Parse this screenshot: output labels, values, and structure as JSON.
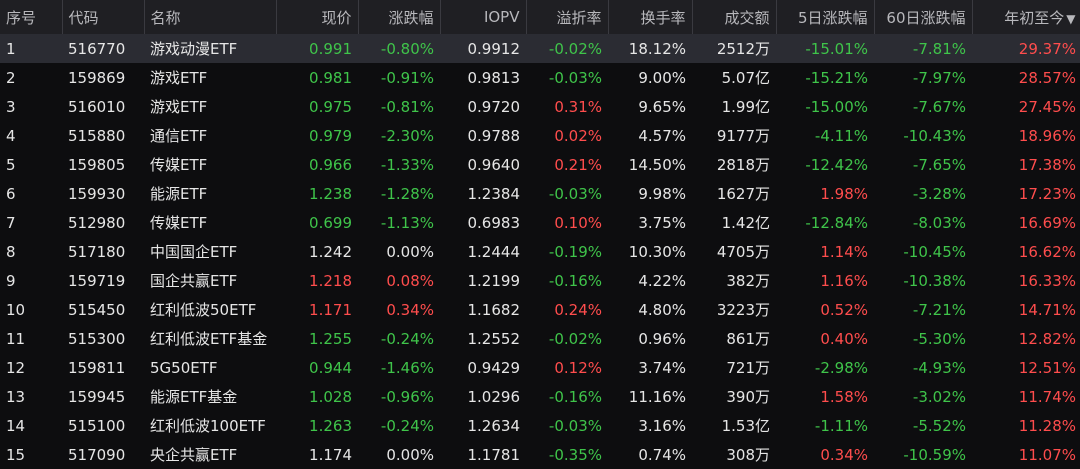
{
  "colors": {
    "up": "#ff4d4d",
    "down": "#3fc44a",
    "flat": "#e6e6e6",
    "header_bg": "#1f1f23",
    "bg": "#0d0d0f",
    "selected_row": "#2b2c33"
  },
  "header": {
    "seq": "序号",
    "code": "代码",
    "name": "名称",
    "price": "现价",
    "change_pct": "涨跌幅",
    "iopv": "IOPV",
    "premium": "溢折率",
    "turnover": "换手率",
    "volume": "成交额",
    "chg5d": "5日涨跌幅",
    "chg60d": "60日涨跌幅",
    "ytd": "年初至今",
    "ytd_sort_icon": "▼"
  },
  "rows": [
    {
      "seq": "1",
      "code": "516770",
      "name": "游戏动漫ETF",
      "price": "0.991",
      "change_pct": "-0.80%",
      "iopv": "0.9912",
      "premium": "-0.02%",
      "turnover": "18.12%",
      "volume": "2512万",
      "chg5d": "-15.01%",
      "chg60d": "-7.81%",
      "ytd": "29.37%"
    },
    {
      "seq": "2",
      "code": "159869",
      "name": "游戏ETF",
      "price": "0.981",
      "change_pct": "-0.91%",
      "iopv": "0.9813",
      "premium": "-0.03%",
      "turnover": "9.00%",
      "volume": "5.07亿",
      "chg5d": "-15.21%",
      "chg60d": "-7.97%",
      "ytd": "28.57%"
    },
    {
      "seq": "3",
      "code": "516010",
      "name": "游戏ETF",
      "price": "0.975",
      "change_pct": "-0.81%",
      "iopv": "0.9720",
      "premium": "0.31%",
      "turnover": "9.65%",
      "volume": "1.99亿",
      "chg5d": "-15.00%",
      "chg60d": "-7.67%",
      "ytd": "27.45%"
    },
    {
      "seq": "4",
      "code": "515880",
      "name": "通信ETF",
      "price": "0.979",
      "change_pct": "-2.30%",
      "iopv": "0.9788",
      "premium": "0.02%",
      "turnover": "4.57%",
      "volume": "9177万",
      "chg5d": "-4.11%",
      "chg60d": "-10.43%",
      "ytd": "18.96%"
    },
    {
      "seq": "5",
      "code": "159805",
      "name": "传媒ETF",
      "price": "0.966",
      "change_pct": "-1.33%",
      "iopv": "0.9640",
      "premium": "0.21%",
      "turnover": "14.50%",
      "volume": "2818万",
      "chg5d": "-12.42%",
      "chg60d": "-7.65%",
      "ytd": "17.38%"
    },
    {
      "seq": "6",
      "code": "159930",
      "name": "能源ETF",
      "price": "1.238",
      "change_pct": "-1.28%",
      "iopv": "1.2384",
      "premium": "-0.03%",
      "turnover": "9.98%",
      "volume": "1627万",
      "chg5d": "1.98%",
      "chg60d": "-3.28%",
      "ytd": "17.23%"
    },
    {
      "seq": "7",
      "code": "512980",
      "name": "传媒ETF",
      "price": "0.699",
      "change_pct": "-1.13%",
      "iopv": "0.6983",
      "premium": "0.10%",
      "turnover": "3.75%",
      "volume": "1.42亿",
      "chg5d": "-12.84%",
      "chg60d": "-8.03%",
      "ytd": "16.69%"
    },
    {
      "seq": "8",
      "code": "517180",
      "name": "中国国企ETF",
      "price": "1.242",
      "change_pct": "0.00%",
      "iopv": "1.2444",
      "premium": "-0.19%",
      "turnover": "10.30%",
      "volume": "4705万",
      "chg5d": "1.14%",
      "chg60d": "-10.45%",
      "ytd": "16.62%"
    },
    {
      "seq": "9",
      "code": "159719",
      "name": "国企共赢ETF",
      "price": "1.218",
      "change_pct": "0.08%",
      "iopv": "1.2199",
      "premium": "-0.16%",
      "turnover": "4.22%",
      "volume": "382万",
      "chg5d": "1.16%",
      "chg60d": "-10.38%",
      "ytd": "16.33%"
    },
    {
      "seq": "10",
      "code": "515450",
      "name": "红利低波50ETF",
      "price": "1.171",
      "change_pct": "0.34%",
      "iopv": "1.1682",
      "premium": "0.24%",
      "turnover": "4.80%",
      "volume": "3223万",
      "chg5d": "0.52%",
      "chg60d": "-7.21%",
      "ytd": "14.71%"
    },
    {
      "seq": "11",
      "code": "515300",
      "name": "红利低波ETF基金",
      "price": "1.255",
      "change_pct": "-0.24%",
      "iopv": "1.2552",
      "premium": "-0.02%",
      "turnover": "0.96%",
      "volume": "861万",
      "chg5d": "0.40%",
      "chg60d": "-5.30%",
      "ytd": "12.82%"
    },
    {
      "seq": "12",
      "code": "159811",
      "name": "5G50ETF",
      "price": "0.944",
      "change_pct": "-1.46%",
      "iopv": "0.9429",
      "premium": "0.12%",
      "turnover": "3.74%",
      "volume": "721万",
      "chg5d": "-2.98%",
      "chg60d": "-4.93%",
      "ytd": "12.51%"
    },
    {
      "seq": "13",
      "code": "159945",
      "name": "能源ETF基金",
      "price": "1.028",
      "change_pct": "-0.96%",
      "iopv": "1.0296",
      "premium": "-0.16%",
      "turnover": "11.16%",
      "volume": "390万",
      "chg5d": "1.58%",
      "chg60d": "-3.02%",
      "ytd": "11.74%"
    },
    {
      "seq": "14",
      "code": "515100",
      "name": "红利低波100ETF",
      "price": "1.263",
      "change_pct": "-0.24%",
      "iopv": "1.2634",
      "premium": "-0.03%",
      "turnover": "3.16%",
      "volume": "1.53亿",
      "chg5d": "-1.11%",
      "chg60d": "-5.52%",
      "ytd": "11.28%"
    },
    {
      "seq": "15",
      "code": "517090",
      "name": "央企共赢ETF",
      "price": "1.174",
      "change_pct": "0.00%",
      "iopv": "1.1781",
      "premium": "-0.35%",
      "turnover": "0.74%",
      "volume": "308万",
      "chg5d": "0.34%",
      "chg60d": "-10.59%",
      "ytd": "11.07%"
    }
  ]
}
